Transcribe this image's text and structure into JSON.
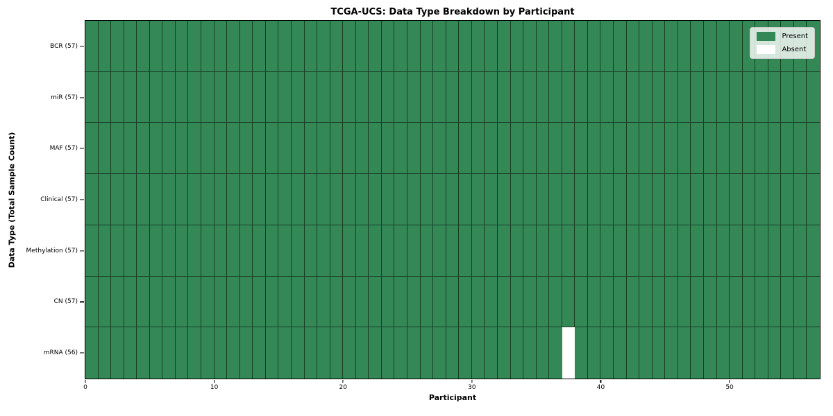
{
  "chart_data": {
    "type": "heatmap",
    "title": "TCGA-UCS: Data Type Breakdown by Participant",
    "xlabel": "Participant",
    "ylabel": "Data Type (Total Sample Count)",
    "n_participants": 57,
    "xlim": [
      0,
      57
    ],
    "x_ticks": [
      0,
      10,
      20,
      30,
      40,
      50
    ],
    "rows": [
      {
        "label": "BCR (57)",
        "data_type": "BCR",
        "present_count": 57,
        "absent_participants": []
      },
      {
        "label": "miR (57)",
        "data_type": "miR",
        "present_count": 57,
        "absent_participants": []
      },
      {
        "label": "MAF (57)",
        "data_type": "MAF",
        "present_count": 57,
        "absent_participants": []
      },
      {
        "label": "Clinical (57)",
        "data_type": "Clinical",
        "present_count": 57,
        "absent_participants": []
      },
      {
        "label": "Methylation (57)",
        "data_type": "Methylation",
        "present_count": 57,
        "absent_participants": []
      },
      {
        "label": "CN (57)",
        "data_type": "CN",
        "present_count": 57,
        "absent_participants": []
      },
      {
        "label": "mRNA (56)",
        "data_type": "mRNA",
        "present_count": 56,
        "absent_participants": [
          37
        ]
      }
    ],
    "legend": [
      {
        "label": "Present",
        "color": "#348856"
      },
      {
        "label": "Absent",
        "color": "#ffffff"
      }
    ],
    "colors": {
      "present": "#348856",
      "absent": "#ffffff"
    },
    "legend_position": "upper right",
    "grid": true
  }
}
